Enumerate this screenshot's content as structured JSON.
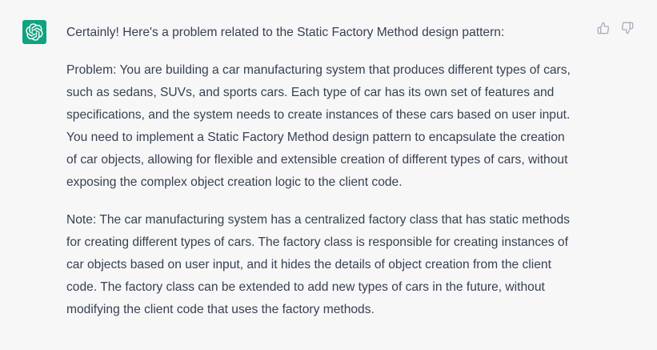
{
  "assistant": {
    "avatar_icon": "openai-logo-icon",
    "avatar_color": "#10a37f"
  },
  "message": {
    "intro": "Certainly! Here's a problem related to the Static Factory Method design pattern:",
    "problem_lines": [
      "Problem: You are building a car manufacturing system that produces different types of cars,",
      "such as sedans, SUVs, and sports cars. Each type of car has its own set of features and",
      "specifications, and the system needs to create instances of these cars based on user input.",
      "You need to implement a Static Factory Method design pattern to encapsulate the creation",
      "of car objects, allowing for flexible and extensible creation of different types of cars, without",
      "exposing the complex object creation logic to the client code."
    ],
    "note_lines": [
      "Note: The car manufacturing system has a centralized factory class that has static methods",
      "for creating different types of cars. The factory class is responsible for creating instances of",
      "car objects based on user input, and it hides the details of object creation from the client",
      "code. The factory class can be extended to add new types of cars in the future, without",
      "modifying the client code that uses the factory methods."
    ]
  },
  "feedback": {
    "thumbs_up_icon": "thumbs-up-icon",
    "thumbs_down_icon": "thumbs-down-icon"
  }
}
